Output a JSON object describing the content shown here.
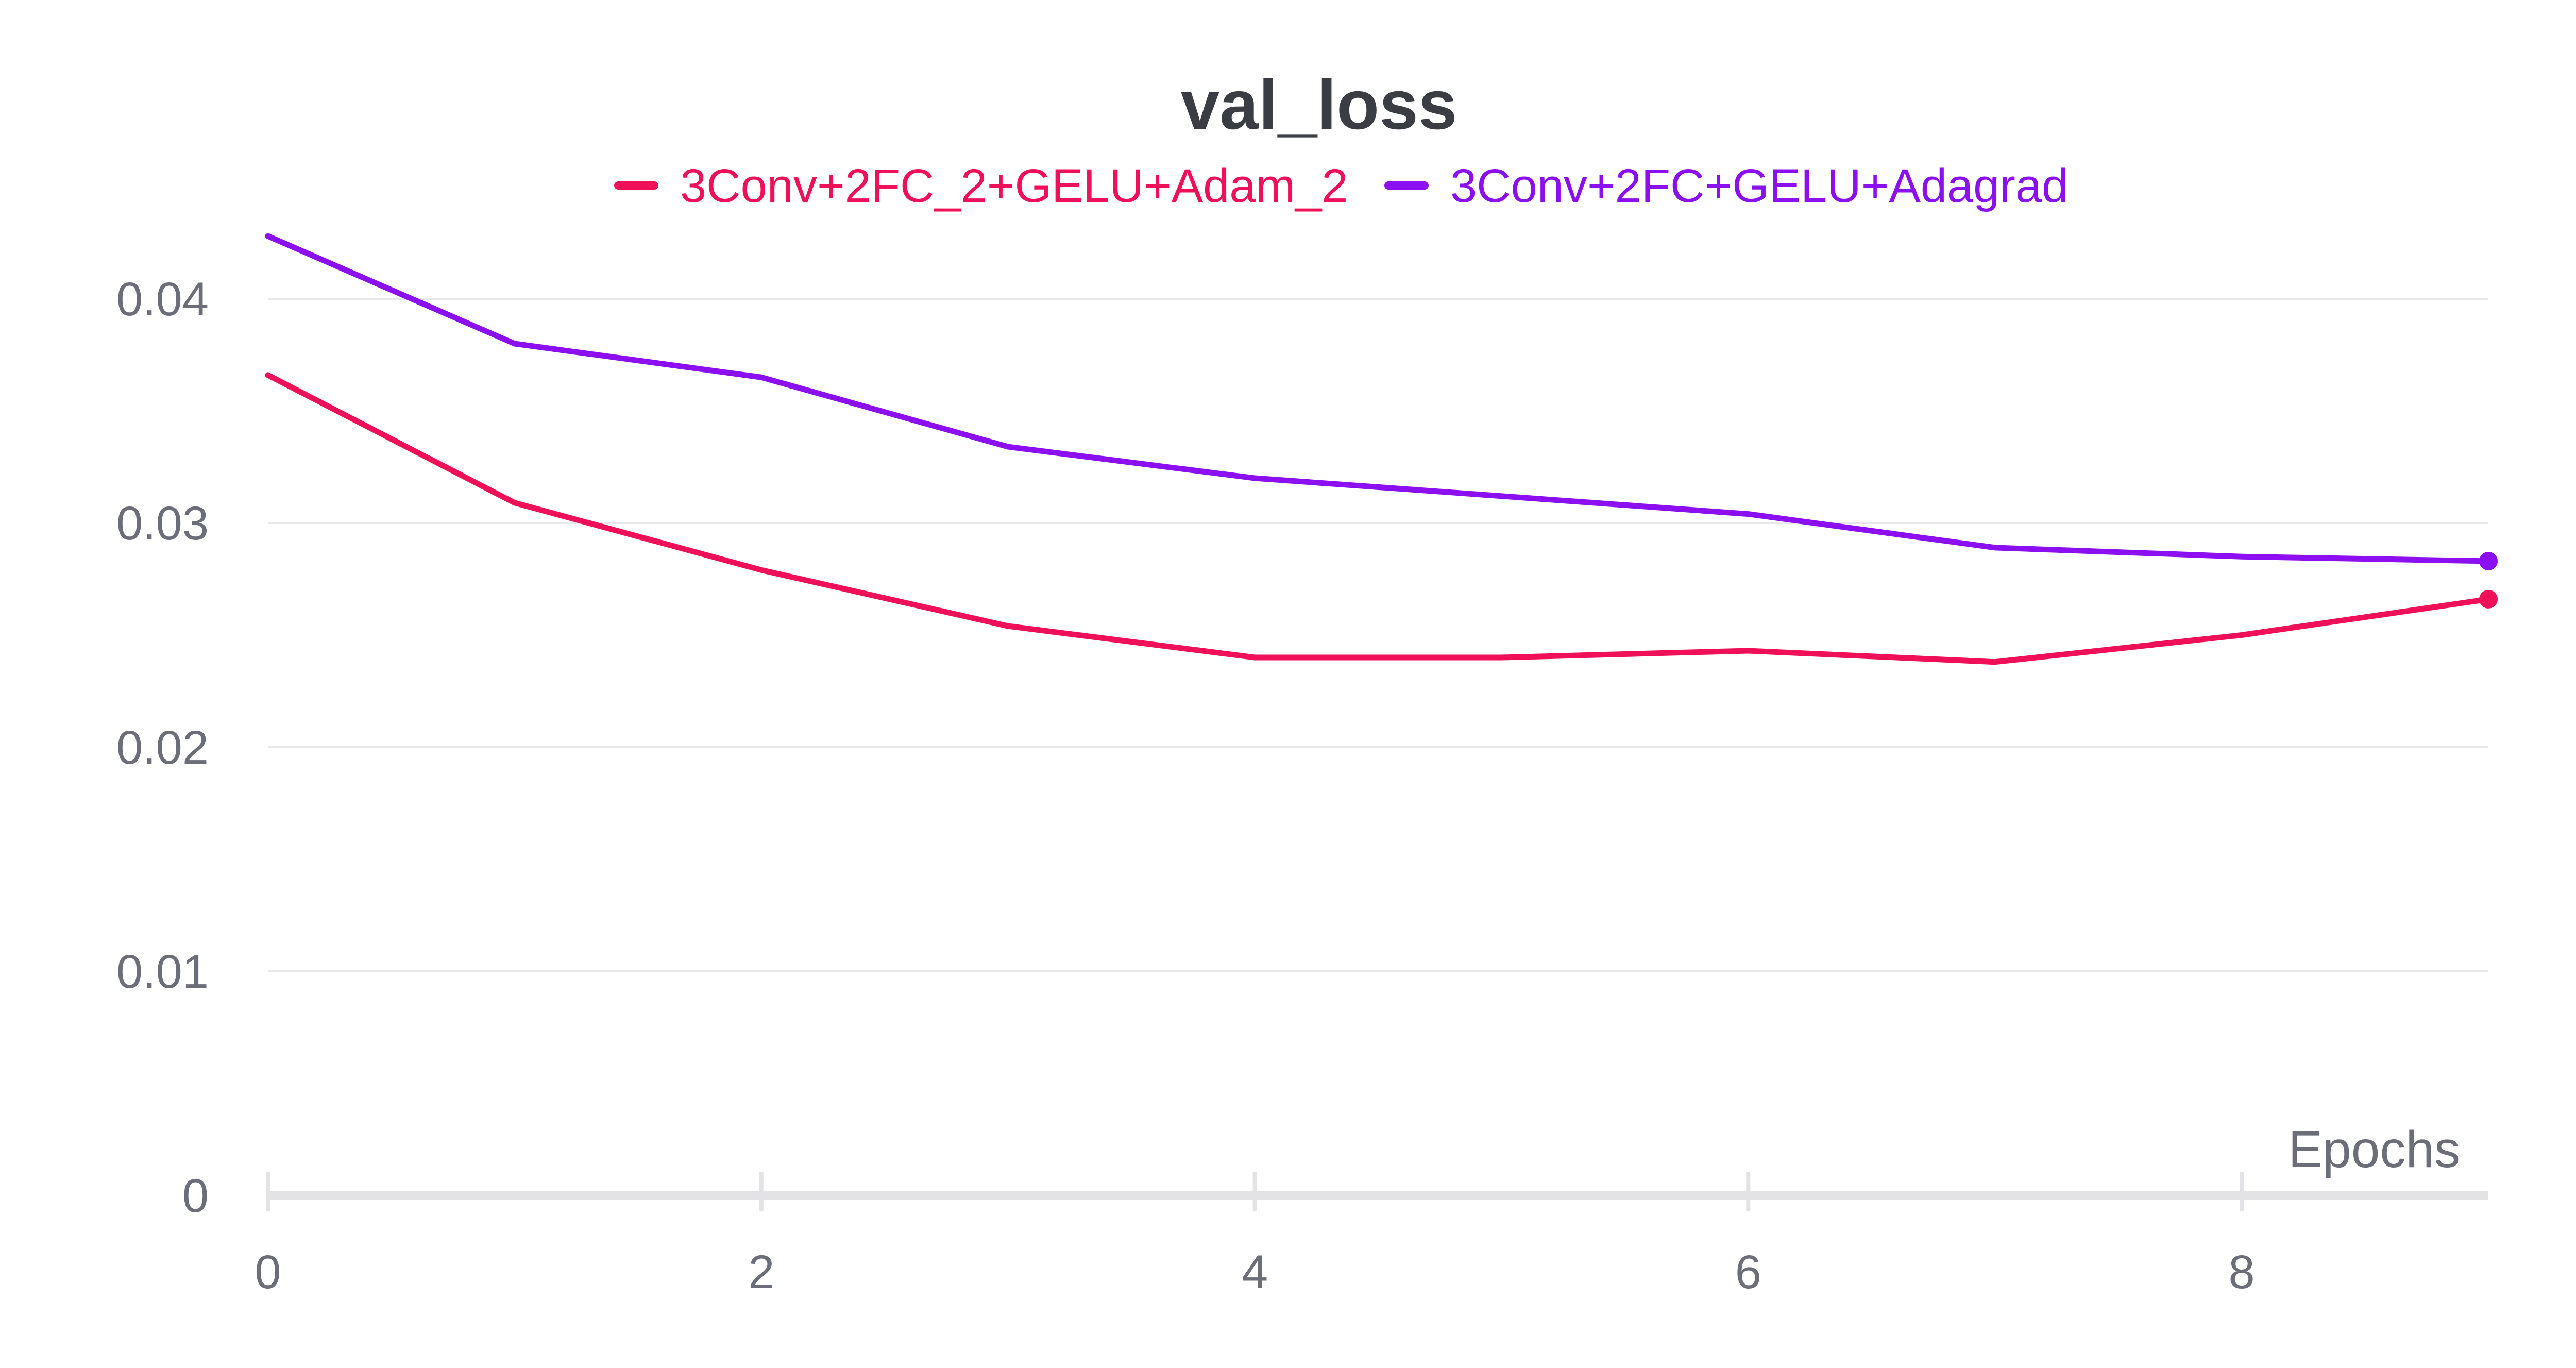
{
  "chart_data": {
    "type": "line",
    "title": "val_loss",
    "xlabel": "Epochs",
    "ylabel": "",
    "xlim": [
      0,
      9
    ],
    "ylim": [
      0,
      0.04
    ],
    "x_ticks": [
      "0",
      "2",
      "4",
      "6",
      "8"
    ],
    "y_ticks": [
      "0",
      "0.01",
      "0.02",
      "0.03",
      "0.04"
    ],
    "grid": true,
    "legend_position": "top",
    "x": [
      0,
      1,
      2,
      3,
      4,
      5,
      6,
      7,
      8,
      9
    ],
    "series": [
      {
        "name": "3Conv+2FC_2+GELU+Adam_2",
        "color": "#f0105a",
        "values": [
          0.0366,
          0.0309,
          0.0279,
          0.0254,
          0.024,
          0.024,
          0.0243,
          0.0238,
          0.025,
          0.0266
        ]
      },
      {
        "name": "3Conv+2FC+GELU+Adagrad",
        "color": "#8b0ff0",
        "values": [
          0.0428,
          0.038,
          0.0365,
          0.0334,
          0.032,
          0.0312,
          0.0304,
          0.0289,
          0.0285,
          0.0283
        ]
      }
    ]
  }
}
